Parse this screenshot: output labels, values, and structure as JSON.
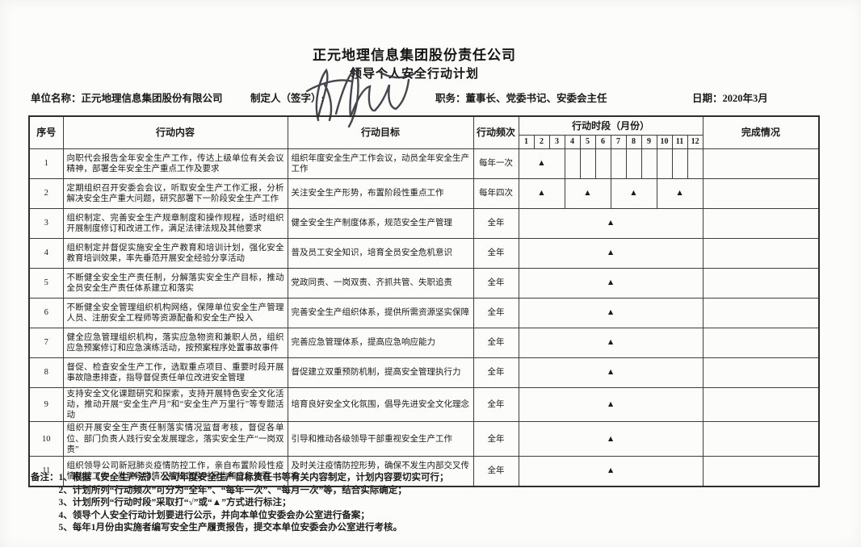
{
  "header": {
    "title": "正元地理信息集团股份责任公司",
    "subtitle": "领导个人安全行动计划"
  },
  "info": {
    "unit_label": "单位名称：",
    "unit_value": "正元地理信息集团股份有限公司",
    "maker_label": "制定人（签字）:",
    "duty_label": "职务：",
    "duty_value": "董事长、党委书记、安委会主任",
    "date_label": "日期：",
    "date_value": "2020年3月"
  },
  "table": {
    "headers": {
      "index": "序号",
      "content": "行动内容",
      "target": "行动目标",
      "frequency": "行动频次",
      "period": "行动时段（月份）",
      "completion": "完成情况"
    },
    "months": [
      "1",
      "2",
      "3",
      "4",
      "5",
      "6",
      "7",
      "8",
      "9",
      "10",
      "11",
      "12"
    ],
    "mark": "▲",
    "rows": [
      {
        "no": "1",
        "content": "向职代会报告全年安全生产工作，传达上级单位有关会议精神，部署全年安全生产重点工作及要求",
        "target": "组织年度安全生产工作会议，动员全年安全生产工作",
        "frequency": "每年一次",
        "month_groups": [
          {
            "span": 3,
            "mark": true
          },
          {
            "span": 1,
            "mark": false
          },
          {
            "span": 1,
            "mark": false
          },
          {
            "span": 1,
            "mark": false
          },
          {
            "span": 1,
            "mark": false
          },
          {
            "span": 1,
            "mark": false
          },
          {
            "span": 1,
            "mark": false
          },
          {
            "span": 1,
            "mark": false
          },
          {
            "span": 1,
            "mark": false
          },
          {
            "span": 1,
            "mark": false
          }
        ],
        "completion": ""
      },
      {
        "no": "2",
        "content": "定期组织召开安委会会议，听取安全生产工作汇报，分析解决安全生产重大问题，研究部署下一阶段安全生产工作",
        "target": "关注安全生产形势，布置阶段性重点工作",
        "frequency": "每年四次",
        "month_groups": [
          {
            "span": 3,
            "mark": true
          },
          {
            "span": 3,
            "mark": true
          },
          {
            "span": 3,
            "mark": true
          },
          {
            "span": 3,
            "mark": true
          }
        ],
        "completion": ""
      },
      {
        "no": "3",
        "content": "组织制定、完善安全生产规章制度和操作规程，适时组织开展制度修订和改进工作，满足法律法规及其他要求",
        "target": "健全安全生产制度体系，规范安全生产管理",
        "frequency": "全年",
        "month_groups": [
          {
            "span": 12,
            "mark": true
          }
        ],
        "completion": ""
      },
      {
        "no": "4",
        "content": "组织制定并督促实施安全生产教育和培训计划，强化安全教育培训效果，率先垂范开展安全经验分享活动",
        "target": "普及员工安全知识，培育全员安全危机意识",
        "frequency": "全年",
        "month_groups": [
          {
            "span": 12,
            "mark": true
          }
        ],
        "completion": ""
      },
      {
        "no": "5",
        "content": "不断健全安全生产责任制，分解落实安全生产目标，推动全员安全生产责任体系建立和落实",
        "target": "党政同责、一岗双责、齐抓共管、失职追责",
        "frequency": "全年",
        "month_groups": [
          {
            "span": 12,
            "mark": true
          }
        ],
        "completion": ""
      },
      {
        "no": "6",
        "content": "不断健全安全管理组织机构网络，保障单位安全生产管理人员、注册安全工程师等资源配备和安全生产投入",
        "target": "完善安全生产组织体系，提供所需资源坚实保障",
        "frequency": "全年",
        "month_groups": [
          {
            "span": 12,
            "mark": true
          }
        ],
        "completion": ""
      },
      {
        "no": "7",
        "content": "健全应急管理组织机构，落实应急物资和兼职人员，组织应急预案修订和应急演练活动，按预案程序处置事故事件",
        "target": "完善应急管理体系，提高应急响应能力",
        "frequency": "全年",
        "month_groups": [
          {
            "span": 12,
            "mark": true
          }
        ],
        "completion": ""
      },
      {
        "no": "8",
        "content": "督促、检查安全生产工作，选取重点项目、重要时段开展事故隐患排查，指导督促责任单位改进安全管理",
        "target": "督促建立双重预防机制，提高安全管理执行力",
        "frequency": "全年",
        "month_groups": [
          {
            "span": 12,
            "mark": true
          }
        ],
        "completion": ""
      },
      {
        "no": "9",
        "content": "支持安全文化课题研究和探索，支持开展特色安全文化活动，推动开展“安全生产月”和“安全生产万里行”等专题活动",
        "target": "培育良好安全文化氛围，倡导先进安全文化理念",
        "frequency": "全年",
        "month_groups": [
          {
            "span": 12,
            "mark": true
          }
        ],
        "completion": ""
      },
      {
        "no": "10",
        "content": "组织开展安全生产责任制落实情况监督考核，督促各单位、部门负责人践行安全发展理念，落实安全生产“一岗双责”",
        "target": "引导和推动各级领导干部重视安全生产工作",
        "frequency": "全年",
        "month_groups": [
          {
            "span": 12,
            "mark": true
          }
        ],
        "completion": ""
      },
      {
        "no": "11",
        "content": "组织领导公司新冠肺炎疫情防控工作，亲自布置阶段性疫情防控工作，发现异常情况按规定及时报告和应急处置",
        "target": "及时关注疫情防控形势，确保不发生内部交叉传染",
        "frequency": "全年",
        "month_groups": [
          {
            "span": 12,
            "mark": true
          }
        ],
        "completion": ""
      }
    ]
  },
  "notes": {
    "label": "备注：",
    "items": [
      "1、根据《安全生产法》、公司年度安全生产目标责任书等有关内容制定，计划内容要切实可行；",
      "2、计划所列“行动频次”可分为“全年”、“每年一次”、“每月一次”等，结合实际确定；",
      "3、计划所列“行动时段”采取打“√”或“▲”方式进行标注；",
      "4、领导个人安全行动计划要进行公示，并向本单位安委会办公室进行备案；",
      "5、每年1月份由实施者编写安全生产履责报告，提交本单位安委会办公室进行考核。"
    ]
  }
}
